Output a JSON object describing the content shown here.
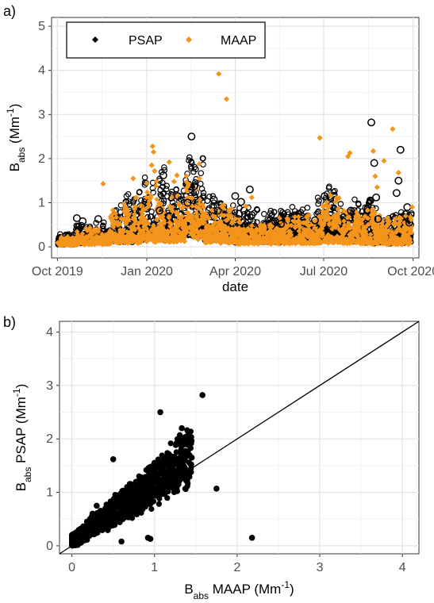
{
  "panels": {
    "a": {
      "label": "a)"
    },
    "b": {
      "label": "b)"
    }
  },
  "chart_data": [
    {
      "type": "scatter",
      "panel": "a",
      "title": "",
      "xlabel": "date",
      "ylabel": {
        "main": "B",
        "sub": "abs",
        "units_pre": " (Mm",
        "units_sup": "-1",
        "units_post": ")"
      },
      "ylim": [
        0,
        5
      ],
      "yticks": [
        0,
        1,
        2,
        3,
        4,
        5
      ],
      "xlim": [
        "2019-10-01",
        "2020-10-01"
      ],
      "xticks": [
        {
          "date": "2019-10-01",
          "label": "Oct 2019"
        },
        {
          "date": "2020-01-01",
          "label": "Jan 2020"
        },
        {
          "date": "2020-04-01",
          "label": "Apr 2020"
        },
        {
          "date": "2020-07-01",
          "label": "Jul 2020"
        },
        {
          "date": "2020-10-01",
          "label": "Oct 2020"
        }
      ],
      "grid": true,
      "legend": {
        "position": "top-left",
        "entries": [
          {
            "name": "PSAP",
            "color": "#000000",
            "marker": "diamond"
          },
          {
            "name": "MAAP",
            "color": "#f4951b",
            "marker": "diamond"
          }
        ]
      },
      "series": [
        {
          "name": "PSAP",
          "color": "#000000",
          "marker": "open-circle",
          "points": [
            [
              "2019-10-21",
              0.65
            ],
            [
              "2019-10-27",
              0.58
            ],
            [
              "2019-11-12",
              0.63
            ],
            [
              "2020-01-14",
              0.82
            ],
            [
              "2020-01-18",
              1.62
            ],
            [
              "2020-02-02",
              1.15
            ],
            [
              "2020-02-12",
              1.0
            ],
            [
              "2020-02-16",
              2.5
            ],
            [
              "2020-02-19",
              1.38
            ],
            [
              "2020-03-10",
              1.07
            ],
            [
              "2020-03-14",
              0.82
            ],
            [
              "2020-04-01",
              1.15
            ],
            [
              "2020-04-05",
              0.75
            ],
            [
              "2020-04-07",
              1.02
            ],
            [
              "2020-04-10",
              0.82
            ],
            [
              "2020-04-16",
              1.3
            ],
            [
              "2020-04-18",
              0.72
            ],
            [
              "2020-05-12",
              0.58
            ],
            [
              "2020-05-18",
              0.52
            ],
            [
              "2020-06-22",
              0.6
            ],
            [
              "2020-07-02",
              1.15
            ],
            [
              "2020-07-29",
              0.82
            ],
            [
              "2020-08-19",
              2.82
            ],
            [
              "2020-08-22",
              1.9
            ],
            [
              "2020-08-24",
              1.12
            ],
            [
              "2020-08-18",
              1.05
            ],
            [
              "2020-08-26",
              0.63
            ],
            [
              "2020-09-16",
              1.5
            ],
            [
              "2020-09-18",
              2.2
            ],
            [
              "2020-09-14",
              1.22
            ],
            [
              "2020-09-25",
              0.9
            ],
            [
              "2020-09-27",
              0.55
            ]
          ]
        },
        {
          "name": "MAAP",
          "color": "#f4951b",
          "marker": "diamond",
          "points": [
            [
              "2019-11-17",
              1.43
            ],
            [
              "2019-12-18",
              1.55
            ],
            [
              "2019-12-21",
              1.12
            ],
            [
              "2020-01-07",
              2.28
            ],
            [
              "2020-01-08",
              2.15
            ],
            [
              "2020-01-06",
              1.85
            ],
            [
              "2020-01-09",
              1.72
            ],
            [
              "2020-01-24",
              1.92
            ],
            [
              "2020-01-29",
              1.48
            ],
            [
              "2020-02-01",
              1.62
            ],
            [
              "2020-03-15",
              3.92
            ],
            [
              "2020-03-23",
              3.35
            ],
            [
              "2020-04-12",
              0.92
            ],
            [
              "2020-04-18",
              1.12
            ],
            [
              "2020-06-27",
              2.47
            ],
            [
              "2020-07-26",
              2.05
            ],
            [
              "2020-07-28",
              2.13
            ],
            [
              "2020-08-21",
              2.17
            ],
            [
              "2020-08-23",
              1.6
            ],
            [
              "2020-08-25",
              1.35
            ],
            [
              "2020-09-01",
              1.95
            ],
            [
              "2020-09-10",
              2.67
            ],
            [
              "2020-09-16",
              1.68
            ],
            [
              "2020-09-30",
              0.9
            ],
            [
              "2020-09-29",
              0.62
            ],
            [
              "2020-09-27",
              0.3
            ]
          ],
          "daily_level_bands": [
            {
              "from": "2019-10-02",
              "to": "2019-10-20",
              "base": 0.05,
              "amp": 0.18
            },
            {
              "from": "2019-10-20",
              "to": "2019-11-25",
              "base": 0.1,
              "amp": 0.35
            },
            {
              "from": "2019-11-25",
              "to": "2019-12-25",
              "base": 0.15,
              "amp": 0.9
            },
            {
              "from": "2019-12-25",
              "to": "2020-01-20",
              "base": 0.2,
              "amp": 1.3
            },
            {
              "from": "2020-01-20",
              "to": "2020-02-10",
              "base": 0.2,
              "amp": 1.0
            },
            {
              "from": "2020-02-10",
              "to": "2020-03-01",
              "base": 0.3,
              "amp": 1.55
            },
            {
              "from": "2020-03-01",
              "to": "2020-04-01",
              "base": 0.15,
              "amp": 0.8
            },
            {
              "from": "2020-04-01",
              "to": "2020-06-25",
              "base": 0.12,
              "amp": 0.6
            },
            {
              "from": "2020-06-25",
              "to": "2020-07-20",
              "base": 0.15,
              "amp": 1.0
            },
            {
              "from": "2020-07-20",
              "to": "2020-08-20",
              "base": 0.12,
              "amp": 0.75
            },
            {
              "from": "2020-08-20",
              "to": "2020-09-29",
              "base": 0.1,
              "amp": 0.7
            }
          ]
        }
      ]
    },
    {
      "type": "scatter",
      "panel": "b",
      "title": "",
      "xlabel": {
        "main": "B",
        "sub": "abs",
        "units_pre": " MAAP (Mm",
        "units_sup": "-1",
        "units_post": ")"
      },
      "ylabel": {
        "main": "B",
        "sub": "abs",
        "units_pre": " PSAP (Mm",
        "units_sup": "-1",
        "units_post": ")"
      },
      "xlim": [
        -0.15,
        4.2
      ],
      "ylim": [
        -0.15,
        4.2
      ],
      "xticks": [
        0,
        1,
        2,
        3,
        4
      ],
      "yticks": [
        0,
        1,
        2,
        3,
        4
      ],
      "grid": true,
      "reference_line": {
        "slope": 1,
        "intercept": 0
      },
      "series": [
        {
          "name": "",
          "color": "#000000",
          "marker": "filled-circle",
          "points": [
            [
              1.58,
              2.82
            ],
            [
              1.07,
              2.5
            ],
            [
              1.33,
              2.2
            ],
            [
              0.5,
              1.62
            ],
            [
              1.12,
              1.12
            ],
            [
              1.75,
              1.07
            ],
            [
              2.18,
              0.15
            ],
            [
              0.92,
              0.15
            ],
            [
              0.95,
              0.13
            ],
            [
              0.6,
              0.08
            ],
            [
              1.45,
              1.65
            ],
            [
              1.35,
              1.5
            ],
            [
              1.2,
              1.42
            ],
            [
              1.4,
              1.3
            ],
            [
              1.25,
              1.25
            ],
            [
              0.85,
              1.0
            ],
            [
              0.3,
              0.75
            ],
            [
              0.25,
              0.6
            ],
            [
              0.7,
              1.1
            ],
            [
              0.95,
              0.95
            ]
          ]
        }
      ]
    }
  ]
}
